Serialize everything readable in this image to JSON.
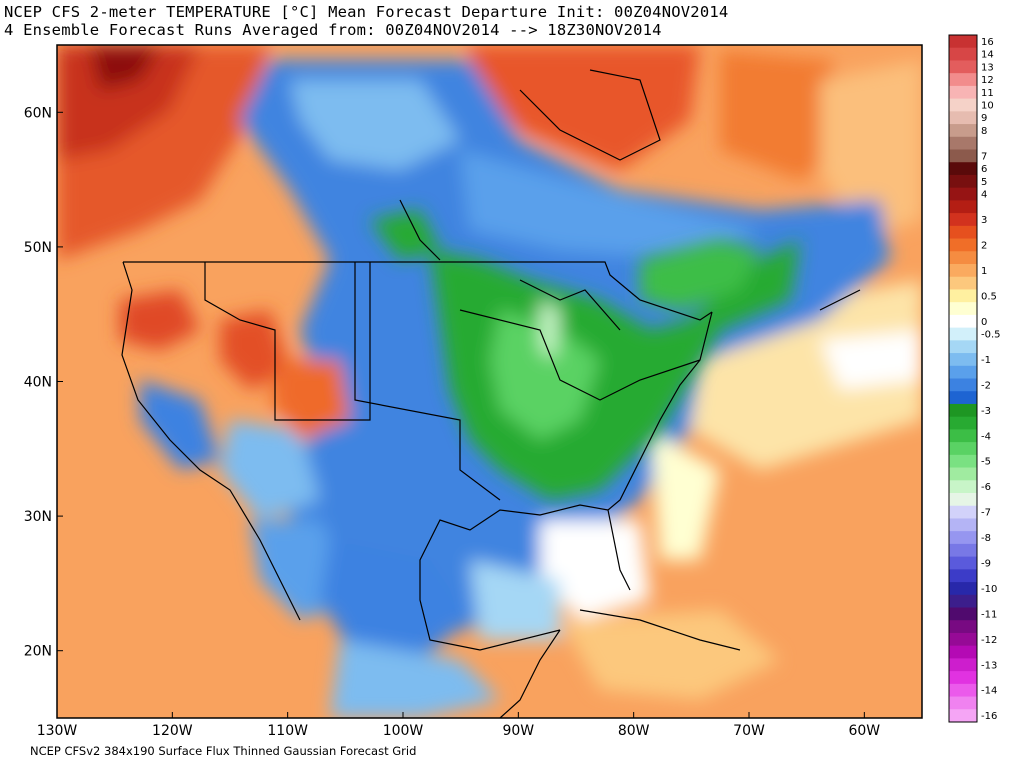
{
  "title_line1": "NCEP CFS 2-meter TEMPERATURE [°C] Mean Forecast Departure Init: 00Z04NOV2014",
  "title_line2": "4 Ensemble Forecast Runs Averaged from: 00Z04NOV2014 --> 18Z30NOV2014",
  "footer": "NCEP CFSv2 384x190 Surface Flux Thinned Gaussian Forecast Grid",
  "map": {
    "lon_range": [
      -130,
      -55
    ],
    "lat_range": [
      15,
      65
    ],
    "lon_ticks": [
      {
        "value": -130,
        "label": "130W"
      },
      {
        "value": -120,
        "label": "120W"
      },
      {
        "value": -110,
        "label": "110W"
      },
      {
        "value": -100,
        "label": "100W"
      },
      {
        "value": -90,
        "label": "90W"
      },
      {
        "value": -80,
        "label": "80W"
      },
      {
        "value": -70,
        "label": "70W"
      },
      {
        "value": -60,
        "label": "60W"
      }
    ],
    "lat_ticks": [
      {
        "value": 20,
        "label": "20N"
      },
      {
        "value": 30,
        "label": "30N"
      },
      {
        "value": 40,
        "label": "40N"
      },
      {
        "value": 50,
        "label": "50N"
      },
      {
        "value": 60,
        "label": "60N"
      }
    ]
  },
  "colorbar": {
    "entries": [
      {
        "label": "16",
        "color": "#c83232"
      },
      {
        "label": "14",
        "color": "#d74646"
      },
      {
        "label": "13",
        "color": "#e35d5d"
      },
      {
        "label": "12",
        "color": "#f28c8c"
      },
      {
        "label": "11",
        "color": "#f8b4b4"
      },
      {
        "label": "10",
        "color": "#f5d2c8"
      },
      {
        "label": "9",
        "color": "#e6bcb0"
      },
      {
        "label": "8",
        "color": "#c89c8c"
      },
      {
        "label": "",
        "color": "#a8786a"
      },
      {
        "label": "7",
        "color": "#8c5a4c"
      },
      {
        "label": "6",
        "color": "#5a0a0a"
      },
      {
        "label": "5",
        "color": "#780f0f"
      },
      {
        "label": "4",
        "color": "#961414"
      },
      {
        "label": "",
        "color": "#b41e14"
      },
      {
        "label": "3",
        "color": "#d2321e"
      },
      {
        "label": "",
        "color": "#e6501e"
      },
      {
        "label": "2",
        "color": "#f06e28"
      },
      {
        "label": "",
        "color": "#f58c41"
      },
      {
        "label": "1",
        "color": "#faaa5f"
      },
      {
        "label": "",
        "color": "#fcc87d"
      },
      {
        "label": "0.5",
        "color": "#fff0a0"
      },
      {
        "label": "",
        "color": "#ffffd2"
      },
      {
        "label": "0",
        "color": "#ffffff"
      },
      {
        "label": "-0.5",
        "color": "#d2f0fa"
      },
      {
        "label": "",
        "color": "#a5d7f5"
      },
      {
        "label": "-1",
        "color": "#7dbcf0"
      },
      {
        "label": "",
        "color": "#5aa0eb"
      },
      {
        "label": "-2",
        "color": "#3c82e1"
      },
      {
        "label": "",
        "color": "#1e64d2"
      },
      {
        "label": "-3",
        "color": "#1e9623"
      },
      {
        "label": "",
        "color": "#28aa32"
      },
      {
        "label": "-4",
        "color": "#3cbe46"
      },
      {
        "label": "",
        "color": "#5ad264"
      },
      {
        "label": "-5",
        "color": "#7ae182"
      },
      {
        "label": "",
        "color": "#a0eba0"
      },
      {
        "label": "-6",
        "color": "#c8f5c8"
      },
      {
        "label": "",
        "color": "#e6f5e6"
      },
      {
        "label": "-7",
        "color": "#d2d2fa"
      },
      {
        "label": "",
        "color": "#b4b4f5"
      },
      {
        "label": "-8",
        "color": "#9696f0"
      },
      {
        "label": "",
        "color": "#7878e6"
      },
      {
        "label": "-9",
        "color": "#5a5adc"
      },
      {
        "label": "",
        "color": "#3c3cc8"
      },
      {
        "label": "-10",
        "color": "#2828aa"
      },
      {
        "label": "",
        "color": "#3c1e8c"
      },
      {
        "label": "-11",
        "color": "#500a6e"
      },
      {
        "label": "",
        "color": "#780a82"
      },
      {
        "label": "-12",
        "color": "#960a96"
      },
      {
        "label": "",
        "color": "#b40ab4"
      },
      {
        "label": "-13",
        "color": "#cd1ecd"
      },
      {
        "label": "",
        "color": "#e132e1"
      },
      {
        "label": "-14",
        "color": "#eb5aeb"
      },
      {
        "label": "",
        "color": "#f082f0"
      },
      {
        "label": "-16",
        "color": "#f5a5f5"
      }
    ]
  }
}
